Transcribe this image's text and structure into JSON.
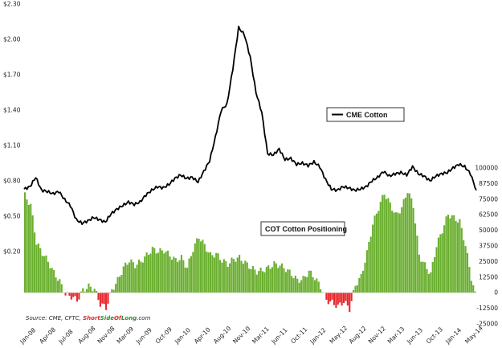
{
  "chart_data": {
    "type": "line+bar",
    "title": "",
    "source": {
      "prefix": "Source: CME, CFTC, ",
      "brand_part1": "Short",
      "brand_part2": "Side",
      "brand_part3": "Of",
      "brand_part4": "Long",
      "brand_suffix": ".com",
      "brand_colors": [
        "#d62728",
        "#2a8a2a"
      ]
    },
    "left_axis": {
      "ticks": [
        "$0.20",
        "$0.50",
        "$0.80",
        "$1.10",
        "$1.40",
        "$1.70",
        "$2.00",
        "$2.30"
      ],
      "values": [
        0.2,
        0.5,
        0.8,
        1.1,
        1.4,
        1.7,
        2.0,
        2.3
      ],
      "ylim": [
        0.0,
        2.3
      ]
    },
    "right_axis": {
      "ticks": [
        "100000",
        "87500",
        "75000",
        "62500",
        "50000",
        "37500",
        "25000",
        "12500",
        "0",
        "-12500",
        "-25000"
      ],
      "values": [
        100000,
        87500,
        75000,
        62500,
        50000,
        37500,
        25000,
        12500,
        0,
        -12500,
        -25000
      ],
      "ylim": [
        -25000,
        100000
      ]
    },
    "x_axis": {
      "labels": [
        "Jan-08",
        "Apr-08",
        "Jul-08",
        "Aug-08",
        "Nov-08",
        "Mar-09",
        "Jun-09",
        "Oct-09",
        "Jan-10",
        "Apr-10",
        "Aug-10",
        "Nov-10",
        "Mar-11",
        "Jun-11",
        "Oct-11",
        "Jan-12",
        "May-12",
        "Aug-12",
        "Nov-12",
        "Mar-13",
        "Jun-13",
        "Oct-13",
        "Jan-14",
        "May-14"
      ],
      "range": [
        "2008-01",
        "2014-07"
      ]
    },
    "series": [
      {
        "name": "CME Cotton",
        "type": "line",
        "axis": "left",
        "color": "#000000",
        "points": [
          [
            "2008-01",
            0.73
          ],
          [
            "2008-02",
            0.75
          ],
          [
            "2008-03",
            0.83
          ],
          [
            "2008-04",
            0.72
          ],
          [
            "2008-05",
            0.71
          ],
          [
            "2008-06",
            0.69
          ],
          [
            "2008-07",
            0.71
          ],
          [
            "2008-08",
            0.64
          ],
          [
            "2008-09",
            0.59
          ],
          [
            "2008-10",
            0.47
          ],
          [
            "2008-11",
            0.44
          ],
          [
            "2008-12",
            0.46
          ],
          [
            "2009-01",
            0.49
          ],
          [
            "2009-02",
            0.47
          ],
          [
            "2009-03",
            0.45
          ],
          [
            "2009-04",
            0.52
          ],
          [
            "2009-05",
            0.56
          ],
          [
            "2009-06",
            0.59
          ],
          [
            "2009-07",
            0.62
          ],
          [
            "2009-08",
            0.6
          ],
          [
            "2009-09",
            0.62
          ],
          [
            "2009-10",
            0.68
          ],
          [
            "2009-11",
            0.72
          ],
          [
            "2009-12",
            0.75
          ],
          [
            "2010-01",
            0.74
          ],
          [
            "2010-02",
            0.77
          ],
          [
            "2010-03",
            0.82
          ],
          [
            "2010-04",
            0.85
          ],
          [
            "2010-05",
            0.82
          ],
          [
            "2010-06",
            0.83
          ],
          [
            "2010-07",
            0.79
          ],
          [
            "2010-08",
            0.88
          ],
          [
            "2010-09",
            0.97
          ],
          [
            "2010-10",
            1.17
          ],
          [
            "2010-11",
            1.4
          ],
          [
            "2010-12",
            1.45
          ],
          [
            "2011-01",
            1.75
          ],
          [
            "2011-02",
            2.1
          ],
          [
            "2011-03",
            2.04
          ],
          [
            "2011-04",
            1.85
          ],
          [
            "2011-05",
            1.55
          ],
          [
            "2011-06",
            1.38
          ],
          [
            "2011-07",
            1.03
          ],
          [
            "2011-08",
            1.02
          ],
          [
            "2011-09",
            1.07
          ],
          [
            "2011-10",
            0.98
          ],
          [
            "2011-11",
            0.99
          ],
          [
            "2011-12",
            0.94
          ],
          [
            "2012-01",
            0.95
          ],
          [
            "2012-02",
            0.93
          ],
          [
            "2012-03",
            0.96
          ],
          [
            "2012-04",
            0.92
          ],
          [
            "2012-05",
            0.81
          ],
          [
            "2012-06",
            0.73
          ],
          [
            "2012-07",
            0.72
          ],
          [
            "2012-08",
            0.75
          ],
          [
            "2012-09",
            0.74
          ],
          [
            "2012-10",
            0.72
          ],
          [
            "2012-11",
            0.73
          ],
          [
            "2012-12",
            0.75
          ],
          [
            "2013-01",
            0.8
          ],
          [
            "2013-02",
            0.83
          ],
          [
            "2013-03",
            0.88
          ],
          [
            "2013-04",
            0.84
          ],
          [
            "2013-05",
            0.86
          ],
          [
            "2013-06",
            0.87
          ],
          [
            "2013-07",
            0.85
          ],
          [
            "2013-08",
            0.92
          ],
          [
            "2013-09",
            0.86
          ],
          [
            "2013-10",
            0.84
          ],
          [
            "2013-11",
            0.8
          ],
          [
            "2013-12",
            0.84
          ],
          [
            "2014-01",
            0.86
          ],
          [
            "2014-02",
            0.87
          ],
          [
            "2014-03",
            0.91
          ],
          [
            "2014-04",
            0.94
          ],
          [
            "2014-05",
            0.92
          ],
          [
            "2014-06",
            0.86
          ],
          [
            "2014-07",
            0.72
          ]
        ]
      },
      {
        "name": "COT Cotton Positioning",
        "type": "bar",
        "axis": "right",
        "color_positive": "#6aaf2f",
        "color_negative": "#e8262d",
        "points": [
          [
            "2008-01",
            78000
          ],
          [
            "2008-02",
            70000
          ],
          [
            "2008-03",
            40000
          ],
          [
            "2008-04",
            32000
          ],
          [
            "2008-05",
            25000
          ],
          [
            "2008-06",
            16000
          ],
          [
            "2008-07",
            9000
          ],
          [
            "2008-08",
            -1500
          ],
          [
            "2008-09",
            -3000
          ],
          [
            "2008-10",
            -6000
          ],
          [
            "2008-11",
            2000
          ],
          [
            "2008-12",
            5000
          ],
          [
            "2009-01",
            3000
          ],
          [
            "2009-02",
            -9000
          ],
          [
            "2009-03",
            -12000
          ],
          [
            "2009-04",
            2000
          ],
          [
            "2009-05",
            10000
          ],
          [
            "2009-06",
            20000
          ],
          [
            "2009-07",
            26000
          ],
          [
            "2009-08",
            22000
          ],
          [
            "2009-09",
            25000
          ],
          [
            "2009-10",
            30000
          ],
          [
            "2009-11",
            35000
          ],
          [
            "2009-12",
            33000
          ],
          [
            "2010-01",
            34000
          ],
          [
            "2010-02",
            30000
          ],
          [
            "2010-03",
            26000
          ],
          [
            "2010-04",
            28000
          ],
          [
            "2010-05",
            20000
          ],
          [
            "2010-06",
            35000
          ],
          [
            "2010-07",
            45000
          ],
          [
            "2010-08",
            38000
          ],
          [
            "2010-09",
            30000
          ],
          [
            "2010-10",
            31000
          ],
          [
            "2010-11",
            26000
          ],
          [
            "2010-12",
            23000
          ],
          [
            "2011-01",
            27000
          ],
          [
            "2011-02",
            28000
          ],
          [
            "2011-03",
            24000
          ],
          [
            "2011-04",
            20000
          ],
          [
            "2011-05",
            17000
          ],
          [
            "2011-06",
            18000
          ],
          [
            "2011-07",
            20000
          ],
          [
            "2011-08",
            23000
          ],
          [
            "2011-09",
            22000
          ],
          [
            "2011-10",
            19000
          ],
          [
            "2011-11",
            15000
          ],
          [
            "2011-12",
            10000
          ],
          [
            "2012-01",
            11000
          ],
          [
            "2012-02",
            17000
          ],
          [
            "2012-03",
            12000
          ],
          [
            "2012-04",
            5000
          ],
          [
            "2012-05",
            -6000
          ],
          [
            "2012-06",
            -8000
          ],
          [
            "2012-07",
            -11000
          ],
          [
            "2012-08",
            -7000
          ],
          [
            "2012-09",
            -13000
          ],
          [
            "2012-10",
            6000
          ],
          [
            "2012-11",
            13000
          ],
          [
            "2012-12",
            32000
          ],
          [
            "2013-01",
            55000
          ],
          [
            "2013-02",
            68000
          ],
          [
            "2013-03",
            80000
          ],
          [
            "2013-04",
            71000
          ],
          [
            "2013-05",
            62000
          ],
          [
            "2013-06",
            68000
          ],
          [
            "2013-07",
            82000
          ],
          [
            "2013-08",
            70000
          ],
          [
            "2013-09",
            30000
          ],
          [
            "2013-10",
            22000
          ],
          [
            "2013-11",
            15000
          ],
          [
            "2013-12",
            38000
          ],
          [
            "2014-01",
            50000
          ],
          [
            "2014-02",
            63000
          ],
          [
            "2014-03",
            60000
          ],
          [
            "2014-04",
            57000
          ],
          [
            "2014-05",
            38000
          ],
          [
            "2014-06",
            12000
          ],
          [
            "2014-07",
            -8000
          ]
        ]
      }
    ],
    "legend": [
      {
        "label": "CME Cotton",
        "color": "#000000",
        "placement": "center-right"
      },
      {
        "label": "COT Cotton Positioning",
        "placement": "center"
      }
    ]
  }
}
